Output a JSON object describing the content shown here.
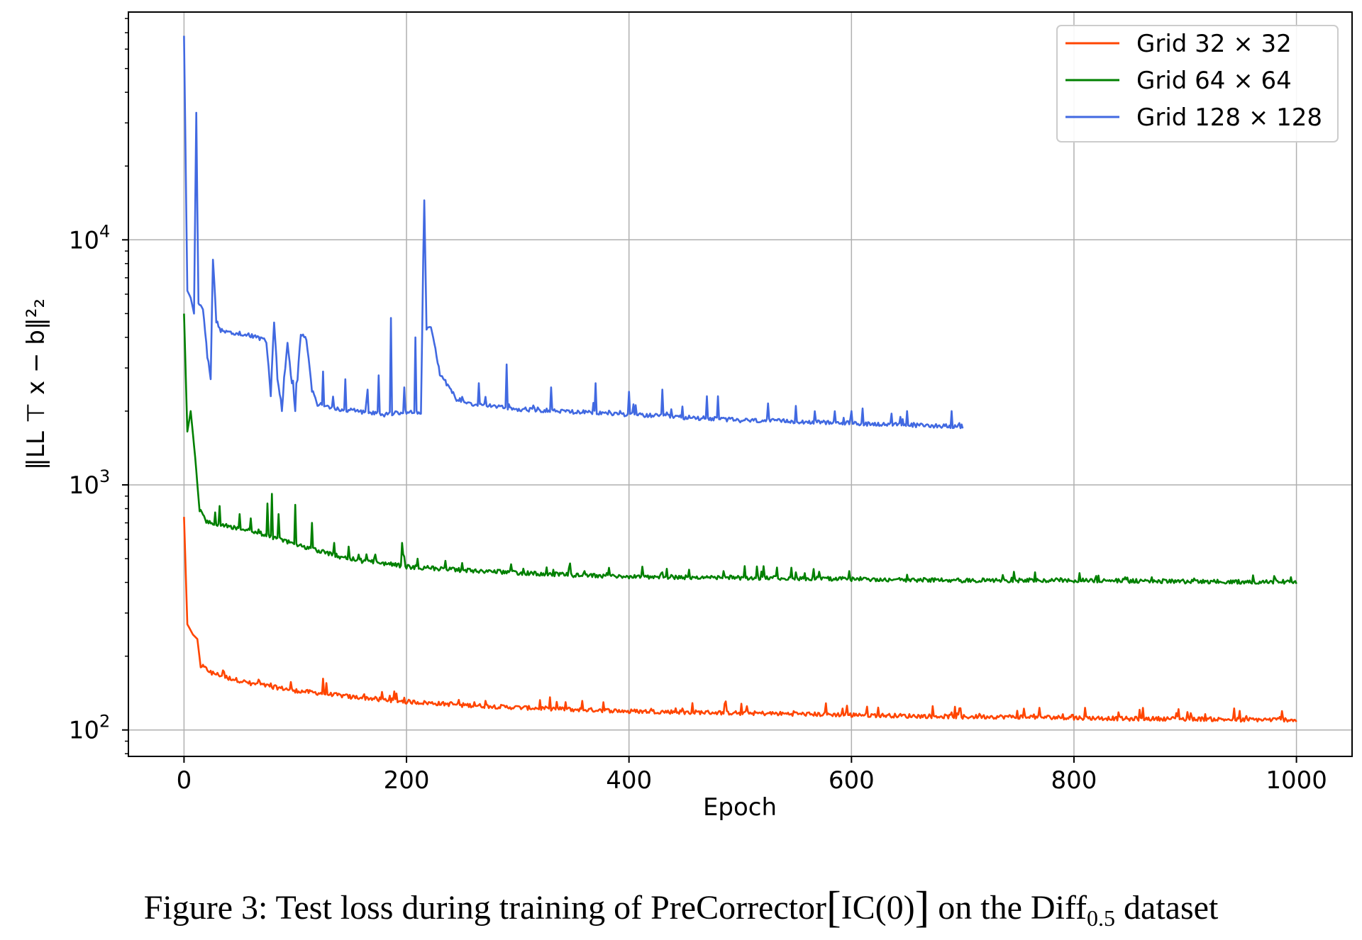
{
  "chart_data": {
    "type": "line",
    "xlabel": "Epoch",
    "ylabel": "‖LL ⊤ x − b‖²₂",
    "yscale": "log",
    "xlim": [
      -50,
      1050
    ],
    "ylim": [
      78,
      85000
    ],
    "xticks": [
      0,
      200,
      400,
      600,
      800,
      1000
    ],
    "xtick_labels": [
      "0",
      "200",
      "400",
      "600",
      "800",
      "1000"
    ],
    "yticks": [
      100,
      1000,
      10000
    ],
    "ytick_labels": [
      {
        "base": "10",
        "exp": "2"
      },
      {
        "base": "10",
        "exp": "3"
      },
      {
        "base": "10",
        "exp": "4"
      }
    ],
    "grid": true,
    "legend_position": "top-right",
    "series": [
      {
        "name": "Grid 32 × 32",
        "color": "#ff4500",
        "points": [
          [
            0,
            740
          ],
          [
            3,
            270
          ],
          [
            8,
            245
          ],
          [
            12,
            235
          ],
          [
            15,
            180
          ],
          [
            25,
            168
          ],
          [
            40,
            160
          ],
          [
            60,
            152
          ],
          [
            80,
            147
          ],
          [
            100,
            142
          ],
          [
            125,
            138
          ],
          [
            150,
            134
          ],
          [
            175,
            131
          ],
          [
            200,
            128
          ],
          [
            250,
            124
          ],
          [
            300,
            121
          ],
          [
            350,
            119
          ],
          [
            400,
            117
          ],
          [
            450,
            116
          ],
          [
            500,
            115
          ],
          [
            550,
            114
          ],
          [
            600,
            113
          ],
          [
            650,
            112
          ],
          [
            700,
            111
          ],
          [
            750,
            111
          ],
          [
            800,
            110
          ],
          [
            850,
            109
          ],
          [
            900,
            109
          ],
          [
            950,
            108
          ],
          [
            1000,
            108
          ]
        ],
        "spikes": [
          [
            35,
            175
          ],
          [
            68,
            158
          ],
          [
            78,
            155
          ],
          [
            125,
            162
          ],
          [
            162,
            140
          ],
          [
            185,
            138
          ],
          [
            240,
            130
          ],
          [
            300,
            125
          ],
          [
            420,
            122
          ],
          [
            550,
            118
          ],
          [
            595,
            118
          ],
          [
            690,
            118
          ],
          [
            790,
            116
          ],
          [
            840,
            118
          ],
          [
            955,
            114
          ],
          [
            985,
            113
          ]
        ]
      },
      {
        "name": "Grid 64 × 64",
        "color": "#008000",
        "points": [
          [
            0,
            5000
          ],
          [
            3,
            1650
          ],
          [
            6,
            2000
          ],
          [
            10,
            1300
          ],
          [
            14,
            780
          ],
          [
            20,
            700
          ],
          [
            30,
            680
          ],
          [
            50,
            650
          ],
          [
            70,
            620
          ],
          [
            80,
            600
          ],
          [
            100,
            560
          ],
          [
            120,
            530
          ],
          [
            140,
            500
          ],
          [
            160,
            480
          ],
          [
            180,
            470
          ],
          [
            200,
            455
          ],
          [
            250,
            440
          ],
          [
            300,
            430
          ],
          [
            350,
            420
          ],
          [
            400,
            415
          ],
          [
            450,
            412
          ],
          [
            500,
            410
          ],
          [
            550,
            408
          ],
          [
            600,
            405
          ],
          [
            650,
            402
          ],
          [
            700,
            400
          ],
          [
            750,
            400
          ],
          [
            800,
            400
          ],
          [
            850,
            398
          ],
          [
            900,
            396
          ],
          [
            950,
            395
          ],
          [
            1000,
            395
          ]
        ],
        "spikes": [
          [
            32,
            820
          ],
          [
            50,
            760
          ],
          [
            60,
            730
          ],
          [
            75,
            840
          ],
          [
            79,
            920
          ],
          [
            85,
            760
          ],
          [
            100,
            830
          ],
          [
            115,
            700
          ],
          [
            135,
            580
          ],
          [
            148,
            560
          ],
          [
            172,
            520
          ],
          [
            196,
            580
          ],
          [
            210,
            500
          ],
          [
            235,
            490
          ],
          [
            250,
            480
          ],
          [
            305,
            455
          ],
          [
            360,
            445
          ],
          [
            430,
            440
          ],
          [
            485,
            445
          ],
          [
            550,
            440
          ],
          [
            598,
            445
          ],
          [
            650,
            430
          ],
          [
            765,
            440
          ],
          [
            820,
            425
          ],
          [
            870,
            420
          ],
          [
            980,
            425
          ],
          [
            995,
            420
          ]
        ]
      },
      {
        "name": "Grid 128 × 128",
        "color": "#4169e1",
        "points": [
          [
            0,
            68000
          ],
          [
            3,
            6200
          ],
          [
            6,
            5800
          ],
          [
            9,
            5000
          ],
          [
            11,
            33000
          ],
          [
            13,
            5500
          ],
          [
            17,
            5200
          ],
          [
            21,
            3300
          ],
          [
            24,
            2700
          ],
          [
            26,
            8300
          ],
          [
            29,
            4600
          ],
          [
            33,
            4200
          ],
          [
            45,
            4100
          ],
          [
            60,
            4000
          ],
          [
            74,
            3800
          ],
          [
            78,
            2300
          ],
          [
            81,
            4600
          ],
          [
            84,
            2700
          ],
          [
            88,
            2000
          ],
          [
            93,
            3800
          ],
          [
            96,
            2800
          ],
          [
            100,
            2000
          ],
          [
            105,
            4100
          ],
          [
            110,
            3900
          ],
          [
            115,
            2400
          ],
          [
            120,
            2100
          ],
          [
            140,
            2000
          ],
          [
            160,
            1950
          ],
          [
            180,
            1900
          ],
          [
            200,
            1950
          ],
          [
            210,
            1950
          ],
          [
            213,
            1950
          ],
          [
            216,
            14500
          ],
          [
            218,
            4300
          ],
          [
            222,
            4400
          ],
          [
            230,
            2800
          ],
          [
            245,
            2200
          ],
          [
            260,
            2100
          ],
          [
            300,
            2000
          ],
          [
            350,
            1950
          ],
          [
            400,
            1900
          ],
          [
            450,
            1850
          ],
          [
            500,
            1800
          ],
          [
            550,
            1780
          ],
          [
            600,
            1750
          ],
          [
            650,
            1720
          ],
          [
            700,
            1700
          ]
        ],
        "spikes": [
          [
            125,
            2900
          ],
          [
            145,
            2700
          ],
          [
            165,
            2450
          ],
          [
            175,
            2800
          ],
          [
            186,
            4800
          ],
          [
            198,
            2500
          ],
          [
            208,
            4000
          ],
          [
            265,
            2600
          ],
          [
            290,
            3100
          ],
          [
            330,
            2500
          ],
          [
            370,
            2600
          ],
          [
            400,
            2400
          ],
          [
            430,
            2450
          ],
          [
            470,
            2300
          ],
          [
            480,
            2300
          ],
          [
            525,
            2150
          ],
          [
            550,
            2100
          ],
          [
            600,
            2000
          ],
          [
            610,
            2050
          ],
          [
            650,
            2000
          ],
          [
            690,
            2000
          ]
        ]
      }
    ]
  },
  "caption": {
    "prefix": "Figure 3: Test loss during training of PreCorrector",
    "bracket_open": "[",
    "inner": "IC(0)",
    "bracket_close": "]",
    "middle": " on the Diff",
    "subscript": "0.5",
    "suffix": " dataset"
  }
}
